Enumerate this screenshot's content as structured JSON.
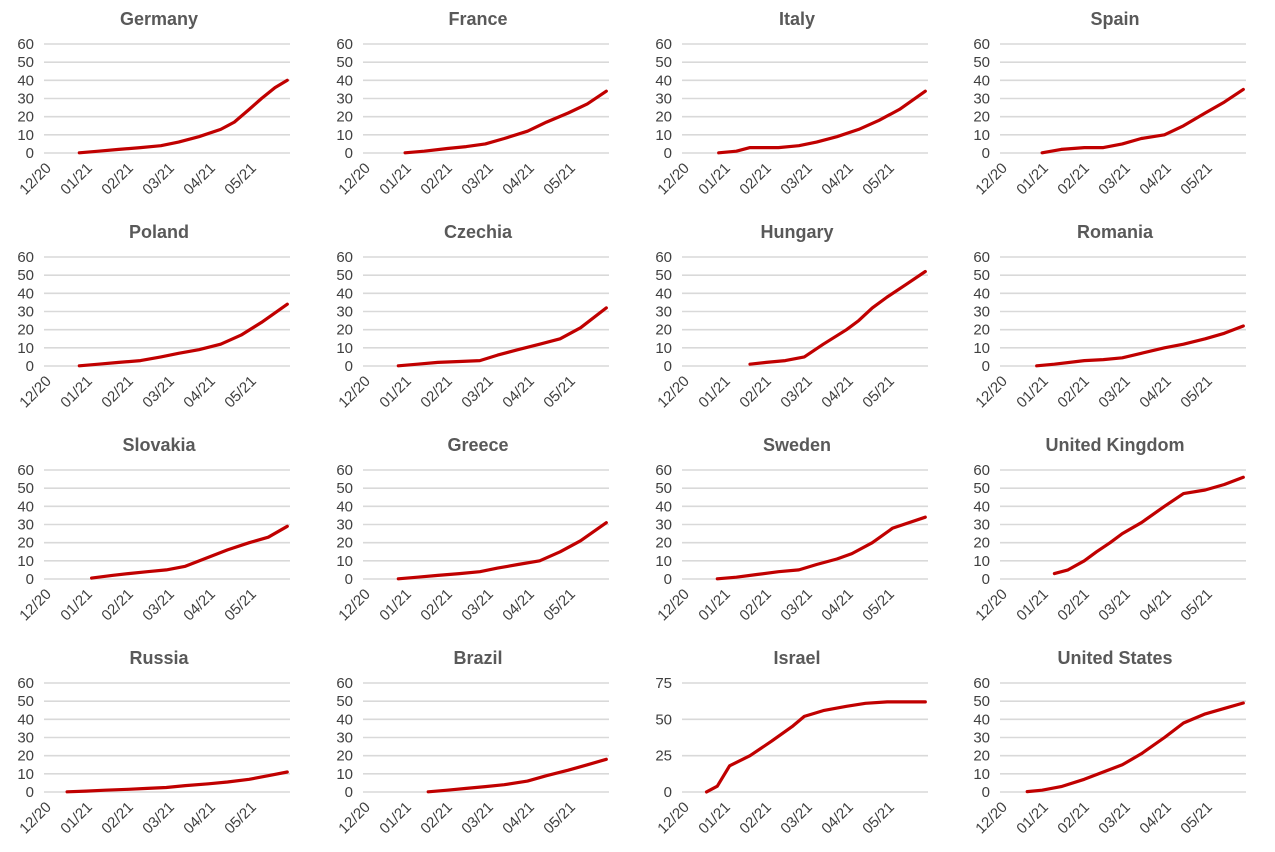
{
  "colors": {
    "series": "#c00000",
    "grid": "#d9d9d9",
    "text": "#404040",
    "title": "#595959"
  },
  "chart_data": [
    {
      "type": "line",
      "title": "Germany",
      "x_tick_labels": [
        "12/20",
        "01/21",
        "02/21",
        "03/21",
        "04/21",
        "05/21"
      ],
      "xlim": [
        "2020-12-01",
        "2021-05-31"
      ],
      "ylim": [
        0,
        60
      ],
      "y_ticks": [
        0,
        10,
        20,
        30,
        40,
        50,
        60
      ],
      "grid": true,
      "series": [
        {
          "x": [
            "2020-12-27",
            "2021-01-10",
            "2021-01-25",
            "2021-02-10",
            "2021-02-25",
            "2021-03-10",
            "2021-03-25",
            "2021-04-10",
            "2021-04-20",
            "2021-05-01",
            "2021-05-10",
            "2021-05-20",
            "2021-05-29"
          ],
          "values": [
            0.1,
            1,
            2,
            3,
            4,
            6,
            9,
            13,
            17,
            24,
            30,
            36,
            40
          ]
        }
      ]
    },
    {
      "type": "line",
      "title": "France",
      "x_tick_labels": [
        "12/20",
        "01/21",
        "02/21",
        "03/21",
        "04/21",
        "05/21"
      ],
      "xlim": [
        "2020-12-01",
        "2021-05-31"
      ],
      "ylim": [
        0,
        60
      ],
      "y_ticks": [
        0,
        10,
        20,
        30,
        40,
        50,
        60
      ],
      "grid": true,
      "series": [
        {
          "x": [
            "2021-01-01",
            "2021-01-15",
            "2021-02-01",
            "2021-02-15",
            "2021-03-01",
            "2021-03-15",
            "2021-04-01",
            "2021-04-15",
            "2021-05-01",
            "2021-05-15",
            "2021-05-29"
          ],
          "values": [
            0.1,
            1,
            2.5,
            3.5,
            5,
            8,
            12,
            17,
            22,
            27,
            34
          ]
        }
      ]
    },
    {
      "type": "line",
      "title": "Italy",
      "x_tick_labels": [
        "12/20",
        "01/21",
        "02/21",
        "03/21",
        "04/21",
        "05/21"
      ],
      "xlim": [
        "2020-12-01",
        "2021-05-31"
      ],
      "ylim": [
        0,
        60
      ],
      "y_ticks": [
        0,
        10,
        20,
        30,
        40,
        50,
        60
      ],
      "grid": true,
      "series": [
        {
          "x": [
            "2020-12-28",
            "2021-01-10",
            "2021-01-20",
            "2021-02-10",
            "2021-02-25",
            "2021-03-10",
            "2021-03-25",
            "2021-04-10",
            "2021-04-25",
            "2021-05-10",
            "2021-05-29"
          ],
          "values": [
            0.1,
            1,
            3,
            3,
            4,
            6,
            9,
            13,
            18,
            24,
            34
          ]
        }
      ]
    },
    {
      "type": "line",
      "title": "Spain",
      "x_tick_labels": [
        "12/20",
        "01/21",
        "02/21",
        "03/21",
        "04/21",
        "05/21"
      ],
      "xlim": [
        "2020-12-01",
        "2021-05-31"
      ],
      "ylim": [
        0,
        60
      ],
      "y_ticks": [
        0,
        10,
        20,
        30,
        40,
        50,
        60
      ],
      "grid": true,
      "series": [
        {
          "x": [
            "2021-01-01",
            "2021-01-15",
            "2021-02-01",
            "2021-02-15",
            "2021-03-01",
            "2021-03-15",
            "2021-04-01",
            "2021-04-15",
            "2021-05-01",
            "2021-05-15",
            "2021-05-29"
          ],
          "values": [
            0.1,
            2,
            3,
            3,
            5,
            8,
            10,
            15,
            22,
            28,
            35
          ]
        }
      ]
    },
    {
      "type": "line",
      "title": "Poland",
      "x_tick_labels": [
        "12/20",
        "01/21",
        "02/21",
        "03/21",
        "04/21",
        "05/21"
      ],
      "xlim": [
        "2020-12-01",
        "2021-05-31"
      ],
      "ylim": [
        0,
        60
      ],
      "y_ticks": [
        0,
        10,
        20,
        30,
        40,
        50,
        60
      ],
      "grid": true,
      "series": [
        {
          "x": [
            "2020-12-27",
            "2021-01-10",
            "2021-01-25",
            "2021-02-10",
            "2021-02-25",
            "2021-03-10",
            "2021-03-25",
            "2021-04-10",
            "2021-04-25",
            "2021-05-10",
            "2021-05-29"
          ],
          "values": [
            0.1,
            1,
            2,
            3,
            5,
            7,
            9,
            12,
            17,
            24,
            34
          ]
        }
      ]
    },
    {
      "type": "line",
      "title": "Czechia",
      "x_tick_labels": [
        "12/20",
        "01/21",
        "02/21",
        "03/21",
        "04/21",
        "05/21"
      ],
      "xlim": [
        "2020-12-01",
        "2021-05-31"
      ],
      "ylim": [
        0,
        60
      ],
      "y_ticks": [
        0,
        10,
        20,
        30,
        40,
        50,
        60
      ],
      "grid": true,
      "series": [
        {
          "x": [
            "2020-12-27",
            "2021-01-10",
            "2021-01-25",
            "2021-02-10",
            "2021-02-25",
            "2021-03-10",
            "2021-03-25",
            "2021-04-10",
            "2021-04-25",
            "2021-05-10",
            "2021-05-29"
          ],
          "values": [
            0.1,
            1,
            2,
            2.5,
            3,
            6,
            9,
            12,
            15,
            21,
            32
          ]
        }
      ]
    },
    {
      "type": "line",
      "title": "Hungary",
      "x_tick_labels": [
        "12/20",
        "01/21",
        "02/21",
        "03/21",
        "04/21",
        "05/21"
      ],
      "xlim": [
        "2020-12-01",
        "2021-05-31"
      ],
      "ylim": [
        0,
        60
      ],
      "y_ticks": [
        0,
        10,
        20,
        30,
        40,
        50,
        60
      ],
      "grid": true,
      "series": [
        {
          "x": [
            "2021-01-20",
            "2021-02-01",
            "2021-02-15",
            "2021-03-01",
            "2021-03-15",
            "2021-04-01",
            "2021-04-10",
            "2021-04-20",
            "2021-05-01",
            "2021-05-15",
            "2021-05-29"
          ],
          "values": [
            1,
            2,
            3,
            5,
            12,
            20,
            25,
            32,
            38,
            45,
            52
          ]
        }
      ]
    },
    {
      "type": "line",
      "title": "Romania",
      "x_tick_labels": [
        "12/20",
        "01/21",
        "02/21",
        "03/21",
        "04/21",
        "05/21"
      ],
      "xlim": [
        "2020-12-01",
        "2021-05-31"
      ],
      "ylim": [
        0,
        60
      ],
      "y_ticks": [
        0,
        10,
        20,
        30,
        40,
        50,
        60
      ],
      "grid": true,
      "series": [
        {
          "x": [
            "2020-12-28",
            "2021-01-10",
            "2021-02-01",
            "2021-02-15",
            "2021-03-01",
            "2021-03-15",
            "2021-04-01",
            "2021-04-15",
            "2021-05-01",
            "2021-05-15",
            "2021-05-29"
          ],
          "values": [
            0.1,
            1,
            3,
            3.5,
            4.5,
            7,
            10,
            12,
            15,
            18,
            22
          ]
        }
      ]
    },
    {
      "type": "line",
      "title": "Slovakia",
      "x_tick_labels": [
        "12/20",
        "01/21",
        "02/21",
        "03/21",
        "04/21",
        "05/21"
      ],
      "xlim": [
        "2020-12-01",
        "2021-05-31"
      ],
      "ylim": [
        0,
        60
      ],
      "y_ticks": [
        0,
        10,
        20,
        30,
        40,
        50,
        60
      ],
      "grid": true,
      "series": [
        {
          "x": [
            "2021-01-05",
            "2021-01-20",
            "2021-02-01",
            "2021-02-15",
            "2021-03-01",
            "2021-03-15",
            "2021-04-01",
            "2021-04-15",
            "2021-05-01",
            "2021-05-15",
            "2021-05-29"
          ],
          "values": [
            0.5,
            2,
            3,
            4,
            5,
            7,
            12,
            16,
            20,
            23,
            29
          ]
        }
      ]
    },
    {
      "type": "line",
      "title": "Greece",
      "x_tick_labels": [
        "12/20",
        "01/21",
        "02/21",
        "03/21",
        "04/21",
        "05/21"
      ],
      "xlim": [
        "2020-12-01",
        "2021-05-31"
      ],
      "ylim": [
        0,
        60
      ],
      "y_ticks": [
        0,
        10,
        20,
        30,
        40,
        50,
        60
      ],
      "grid": true,
      "series": [
        {
          "x": [
            "2020-12-27",
            "2021-01-10",
            "2021-01-25",
            "2021-02-10",
            "2021-02-25",
            "2021-03-10",
            "2021-03-25",
            "2021-04-10",
            "2021-04-25",
            "2021-05-10",
            "2021-05-29"
          ],
          "values": [
            0.1,
            1,
            2,
            3,
            4,
            6,
            8,
            10,
            15,
            21,
            31
          ]
        }
      ]
    },
    {
      "type": "line",
      "title": "Sweden",
      "x_tick_labels": [
        "12/20",
        "01/21",
        "02/21",
        "03/21",
        "04/21",
        "05/21"
      ],
      "xlim": [
        "2020-12-01",
        "2021-05-31"
      ],
      "ylim": [
        0,
        60
      ],
      "y_ticks": [
        0,
        10,
        20,
        30,
        40,
        50,
        60
      ],
      "grid": true,
      "series": [
        {
          "x": [
            "2020-12-27",
            "2021-01-10",
            "2021-01-25",
            "2021-02-10",
            "2021-02-25",
            "2021-03-10",
            "2021-03-25",
            "2021-04-05",
            "2021-04-20",
            "2021-05-05",
            "2021-05-29"
          ],
          "values": [
            0.1,
            1,
            2.5,
            4,
            5,
            8,
            11,
            14,
            20,
            28,
            34
          ]
        }
      ]
    },
    {
      "type": "line",
      "title": "United Kingdom",
      "x_tick_labels": [
        "12/20",
        "01/21",
        "02/21",
        "03/21",
        "04/21",
        "05/21"
      ],
      "xlim": [
        "2020-12-01",
        "2021-05-31"
      ],
      "ylim": [
        0,
        60
      ],
      "y_ticks": [
        0,
        10,
        20,
        30,
        40,
        50,
        60
      ],
      "grid": true,
      "series": [
        {
          "x": [
            "2021-01-10",
            "2021-01-20",
            "2021-02-01",
            "2021-02-10",
            "2021-02-20",
            "2021-03-01",
            "2021-03-15",
            "2021-04-01",
            "2021-04-15",
            "2021-05-01",
            "2021-05-15",
            "2021-05-29"
          ],
          "values": [
            3,
            5,
            10,
            15,
            20,
            25,
            31,
            40,
            47,
            49,
            52,
            56
          ]
        }
      ]
    },
    {
      "type": "line",
      "title": "Russia",
      "x_tick_labels": [
        "12/20",
        "01/21",
        "02/21",
        "03/21",
        "04/21",
        "05/21"
      ],
      "xlim": [
        "2020-12-01",
        "2021-05-31"
      ],
      "ylim": [
        0,
        60
      ],
      "y_ticks": [
        0,
        10,
        20,
        30,
        40,
        50,
        60
      ],
      "grid": true,
      "series": [
        {
          "x": [
            "2020-12-18",
            "2021-01-01",
            "2021-01-15",
            "2021-02-01",
            "2021-02-15",
            "2021-03-01",
            "2021-03-15",
            "2021-04-01",
            "2021-04-15",
            "2021-05-01",
            "2021-05-15",
            "2021-05-29"
          ],
          "values": [
            0.1,
            0.5,
            1,
            1.5,
            2,
            2.5,
            3.5,
            4.5,
            5.5,
            7,
            9,
            11
          ]
        }
      ]
    },
    {
      "type": "line",
      "title": "Brazil",
      "x_tick_labels": [
        "12/20",
        "01/21",
        "02/21",
        "03/21",
        "04/21",
        "05/21"
      ],
      "xlim": [
        "2020-12-01",
        "2021-05-31"
      ],
      "ylim": [
        0,
        60
      ],
      "y_ticks": [
        0,
        10,
        20,
        30,
        40,
        50,
        60
      ],
      "grid": true,
      "series": [
        {
          "x": [
            "2021-01-18",
            "2021-02-01",
            "2021-02-15",
            "2021-03-01",
            "2021-03-15",
            "2021-04-01",
            "2021-04-15",
            "2021-05-01",
            "2021-05-15",
            "2021-05-29"
          ],
          "values": [
            0.1,
            1,
            2,
            3,
            4,
            6,
            9,
            12,
            15,
            18
          ]
        }
      ]
    },
    {
      "type": "line",
      "title": "Israel",
      "x_tick_labels": [
        "12/20",
        "01/21",
        "02/21",
        "03/21",
        "04/21",
        "05/21"
      ],
      "xlim": [
        "2020-12-01",
        "2021-05-31"
      ],
      "ylim": [
        0,
        75
      ],
      "y_ticks": [
        0,
        25,
        50,
        75
      ],
      "grid": true,
      "series": [
        {
          "x": [
            "2020-12-19",
            "2020-12-27",
            "2021-01-05",
            "2021-01-20",
            "2021-02-05",
            "2021-02-20",
            "2021-03-01",
            "2021-03-15",
            "2021-04-01",
            "2021-04-15",
            "2021-05-01",
            "2021-05-29"
          ],
          "values": [
            0.1,
            4,
            18,
            25,
            35,
            45,
            52,
            56,
            59,
            61,
            62,
            62
          ]
        }
      ]
    },
    {
      "type": "line",
      "title": "United States",
      "x_tick_labels": [
        "12/20",
        "01/21",
        "02/21",
        "03/21",
        "04/21",
        "05/21"
      ],
      "xlim": [
        "2020-12-01",
        "2021-05-31"
      ],
      "ylim": [
        0,
        60
      ],
      "y_ticks": [
        0,
        10,
        20,
        30,
        40,
        50,
        60
      ],
      "grid": true,
      "series": [
        {
          "x": [
            "2020-12-21",
            "2021-01-01",
            "2021-01-15",
            "2021-02-01",
            "2021-02-15",
            "2021-03-01",
            "2021-03-15",
            "2021-04-01",
            "2021-04-15",
            "2021-05-01",
            "2021-05-15",
            "2021-05-29"
          ],
          "values": [
            0.2,
            1,
            3,
            7,
            11,
            15,
            21,
            30,
            38,
            43,
            46,
            49
          ]
        }
      ]
    }
  ]
}
